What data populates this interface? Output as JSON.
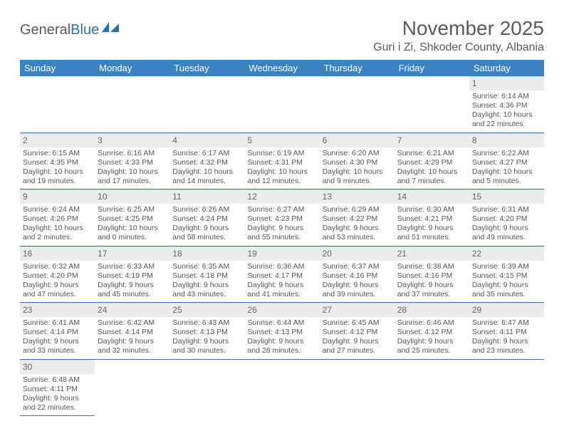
{
  "logo": {
    "general": "General",
    "blue": "Blue"
  },
  "title": "November 2025",
  "location": "Guri i Zi, Shkoder County, Albania",
  "colors": {
    "header_bg": "#3b83c0",
    "header_text": "#ffffff",
    "daynum_bg": "#ececec",
    "border": "#3b6fa0",
    "text": "#555555",
    "title_text": "#5a5a5a",
    "logo_blue": "#2f6fa8"
  },
  "day_labels": [
    "Sunday",
    "Monday",
    "Tuesday",
    "Wednesday",
    "Thursday",
    "Friday",
    "Saturday"
  ],
  "weeks": [
    [
      null,
      null,
      null,
      null,
      null,
      null,
      {
        "n": "1",
        "sr": "Sunrise: 6:14 AM",
        "ss": "Sunset: 4:36 PM",
        "dl1": "Daylight: 10 hours",
        "dl2": "and 22 minutes."
      }
    ],
    [
      {
        "n": "2",
        "sr": "Sunrise: 6:15 AM",
        "ss": "Sunset: 4:35 PM",
        "dl1": "Daylight: 10 hours",
        "dl2": "and 19 minutes."
      },
      {
        "n": "3",
        "sr": "Sunrise: 6:16 AM",
        "ss": "Sunset: 4:33 PM",
        "dl1": "Daylight: 10 hours",
        "dl2": "and 17 minutes."
      },
      {
        "n": "4",
        "sr": "Sunrise: 6:17 AM",
        "ss": "Sunset: 4:32 PM",
        "dl1": "Daylight: 10 hours",
        "dl2": "and 14 minutes."
      },
      {
        "n": "5",
        "sr": "Sunrise: 6:19 AM",
        "ss": "Sunset: 4:31 PM",
        "dl1": "Daylight: 10 hours",
        "dl2": "and 12 minutes."
      },
      {
        "n": "6",
        "sr": "Sunrise: 6:20 AM",
        "ss": "Sunset: 4:30 PM",
        "dl1": "Daylight: 10 hours",
        "dl2": "and 9 minutes."
      },
      {
        "n": "7",
        "sr": "Sunrise: 6:21 AM",
        "ss": "Sunset: 4:29 PM",
        "dl1": "Daylight: 10 hours",
        "dl2": "and 7 minutes."
      },
      {
        "n": "8",
        "sr": "Sunrise: 6:22 AM",
        "ss": "Sunset: 4:27 PM",
        "dl1": "Daylight: 10 hours",
        "dl2": "and 5 minutes."
      }
    ],
    [
      {
        "n": "9",
        "sr": "Sunrise: 6:24 AM",
        "ss": "Sunset: 4:26 PM",
        "dl1": "Daylight: 10 hours",
        "dl2": "and 2 minutes."
      },
      {
        "n": "10",
        "sr": "Sunrise: 6:25 AM",
        "ss": "Sunset: 4:25 PM",
        "dl1": "Daylight: 10 hours",
        "dl2": "and 0 minutes."
      },
      {
        "n": "11",
        "sr": "Sunrise: 6:26 AM",
        "ss": "Sunset: 4:24 PM",
        "dl1": "Daylight: 9 hours",
        "dl2": "and 58 minutes."
      },
      {
        "n": "12",
        "sr": "Sunrise: 6:27 AM",
        "ss": "Sunset: 4:23 PM",
        "dl1": "Daylight: 9 hours",
        "dl2": "and 55 minutes."
      },
      {
        "n": "13",
        "sr": "Sunrise: 6:29 AM",
        "ss": "Sunset: 4:22 PM",
        "dl1": "Daylight: 9 hours",
        "dl2": "and 53 minutes."
      },
      {
        "n": "14",
        "sr": "Sunrise: 6:30 AM",
        "ss": "Sunset: 4:21 PM",
        "dl1": "Daylight: 9 hours",
        "dl2": "and 51 minutes."
      },
      {
        "n": "15",
        "sr": "Sunrise: 6:31 AM",
        "ss": "Sunset: 4:20 PM",
        "dl1": "Daylight: 9 hours",
        "dl2": "and 49 minutes."
      }
    ],
    [
      {
        "n": "16",
        "sr": "Sunrise: 6:32 AM",
        "ss": "Sunset: 4:20 PM",
        "dl1": "Daylight: 9 hours",
        "dl2": "and 47 minutes."
      },
      {
        "n": "17",
        "sr": "Sunrise: 6:33 AM",
        "ss": "Sunset: 4:19 PM",
        "dl1": "Daylight: 9 hours",
        "dl2": "and 45 minutes."
      },
      {
        "n": "18",
        "sr": "Sunrise: 6:35 AM",
        "ss": "Sunset: 4:18 PM",
        "dl1": "Daylight: 9 hours",
        "dl2": "and 43 minutes."
      },
      {
        "n": "19",
        "sr": "Sunrise: 6:36 AM",
        "ss": "Sunset: 4:17 PM",
        "dl1": "Daylight: 9 hours",
        "dl2": "and 41 minutes."
      },
      {
        "n": "20",
        "sr": "Sunrise: 6:37 AM",
        "ss": "Sunset: 4:16 PM",
        "dl1": "Daylight: 9 hours",
        "dl2": "and 39 minutes."
      },
      {
        "n": "21",
        "sr": "Sunrise: 6:38 AM",
        "ss": "Sunset: 4:16 PM",
        "dl1": "Daylight: 9 hours",
        "dl2": "and 37 minutes."
      },
      {
        "n": "22",
        "sr": "Sunrise: 6:39 AM",
        "ss": "Sunset: 4:15 PM",
        "dl1": "Daylight: 9 hours",
        "dl2": "and 35 minutes."
      }
    ],
    [
      {
        "n": "23",
        "sr": "Sunrise: 6:41 AM",
        "ss": "Sunset: 4:14 PM",
        "dl1": "Daylight: 9 hours",
        "dl2": "and 33 minutes."
      },
      {
        "n": "24",
        "sr": "Sunrise: 6:42 AM",
        "ss": "Sunset: 4:14 PM",
        "dl1": "Daylight: 9 hours",
        "dl2": "and 32 minutes."
      },
      {
        "n": "25",
        "sr": "Sunrise: 6:43 AM",
        "ss": "Sunset: 4:13 PM",
        "dl1": "Daylight: 9 hours",
        "dl2": "and 30 minutes."
      },
      {
        "n": "26",
        "sr": "Sunrise: 6:44 AM",
        "ss": "Sunset: 4:13 PM",
        "dl1": "Daylight: 9 hours",
        "dl2": "and 28 minutes."
      },
      {
        "n": "27",
        "sr": "Sunrise: 6:45 AM",
        "ss": "Sunset: 4:12 PM",
        "dl1": "Daylight: 9 hours",
        "dl2": "and 27 minutes."
      },
      {
        "n": "28",
        "sr": "Sunrise: 6:46 AM",
        "ss": "Sunset: 4:12 PM",
        "dl1": "Daylight: 9 hours",
        "dl2": "and 25 minutes."
      },
      {
        "n": "29",
        "sr": "Sunrise: 6:47 AM",
        "ss": "Sunset: 4:11 PM",
        "dl1": "Daylight: 9 hours",
        "dl2": "and 23 minutes."
      }
    ],
    [
      {
        "n": "30",
        "sr": "Sunrise: 6:48 AM",
        "ss": "Sunset: 4:11 PM",
        "dl1": "Daylight: 9 hours",
        "dl2": "and 22 minutes."
      },
      null,
      null,
      null,
      null,
      null,
      null
    ]
  ]
}
